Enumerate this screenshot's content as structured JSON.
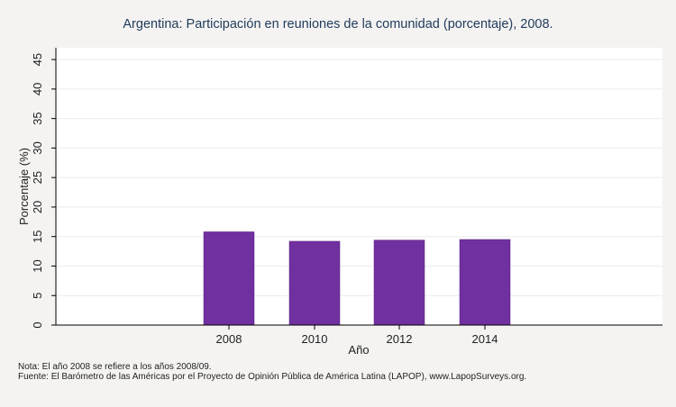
{
  "chart_data": {
    "type": "bar",
    "title": "Argentina: Participación en reuniones de la comunidad (porcentaje), 2008.",
    "xlabel": "Año",
    "ylabel": "Porcentaje (%)",
    "categories": [
      "2008",
      "2010",
      "2012",
      "2014"
    ],
    "values": [
      15.8,
      14.2,
      14.4,
      14.5
    ],
    "ylim": [
      0,
      47
    ],
    "yticks": [
      0,
      5,
      10,
      15,
      20,
      25,
      30,
      35,
      40,
      45
    ],
    "ytick_labels": [
      "0",
      "5",
      "10",
      "15",
      "20",
      "25",
      "30",
      "35",
      "40",
      "45"
    ],
    "grid": true,
    "bar_color": "#7030a0"
  },
  "notes": {
    "line1": "Nota: El año 2008 se refiere a los años 2008/09.",
    "line2": "Fuente: El Barómetro de las Américas por el Proyecto de Opinión Pública de América Latina (LAPOP), www.LapopSurveys.org."
  }
}
